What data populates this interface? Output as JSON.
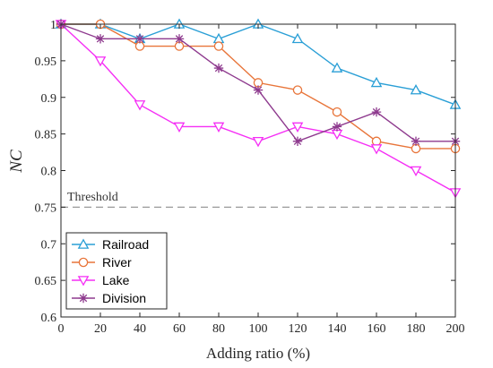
{
  "chart_data": {
    "type": "line",
    "xlabel": "Adding ratio (%)",
    "ylabel": "NC",
    "x": [
      0,
      20,
      40,
      60,
      80,
      100,
      120,
      140,
      160,
      180,
      200
    ],
    "xlim": [
      0,
      200
    ],
    "ylim": [
      0.6,
      1.0
    ],
    "xticks": [
      "0",
      "20",
      "40",
      "60",
      "80",
      "100",
      "120",
      "140",
      "160",
      "180",
      "200"
    ],
    "yticks": [
      "0.6",
      "0.65",
      "0.7",
      "0.75",
      "0.8",
      "0.85",
      "0.9",
      "0.95",
      "1"
    ],
    "grid": false,
    "legend_position": "bottom-left",
    "threshold": {
      "label": "Threshold",
      "value": 0.75,
      "color": "#999999"
    },
    "series": [
      {
        "name": "Railroad",
        "marker": "triangle-up",
        "color": "#2a9fd6",
        "values": [
          1.0,
          1.0,
          0.98,
          1.0,
          0.98,
          1.0,
          0.98,
          0.94,
          0.92,
          0.91,
          0.89
        ]
      },
      {
        "name": "River",
        "marker": "circle",
        "color": "#e8753a",
        "values": [
          1.0,
          1.0,
          0.97,
          0.97,
          0.97,
          0.92,
          0.91,
          0.88,
          0.84,
          0.83,
          0.83
        ]
      },
      {
        "name": "Lake",
        "marker": "triangle-down",
        "color": "#f52ff5",
        "values": [
          1.0,
          0.95,
          0.89,
          0.86,
          0.86,
          0.84,
          0.86,
          0.85,
          0.83,
          0.8,
          0.77
        ]
      },
      {
        "name": "Division",
        "marker": "asterisk",
        "color": "#8e3a8e",
        "values": [
          1.0,
          0.98,
          0.98,
          0.98,
          0.94,
          0.91,
          0.84,
          0.86,
          0.88,
          0.84,
          0.84
        ]
      }
    ]
  }
}
